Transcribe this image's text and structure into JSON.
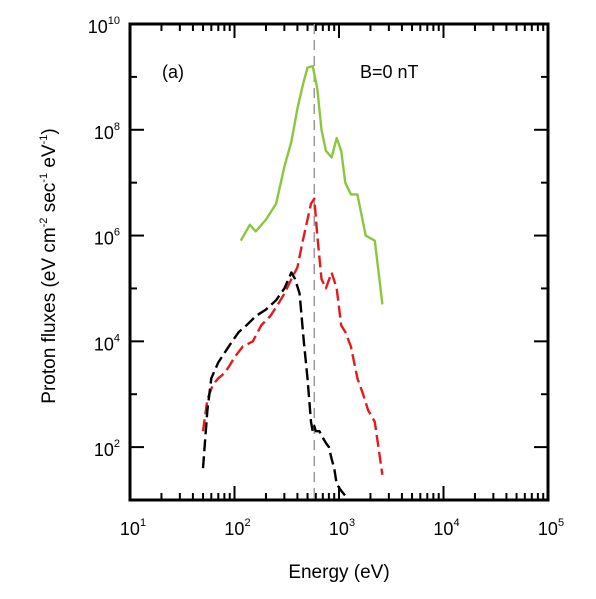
{
  "chart_data": {
    "type": "line",
    "xlabel": "Energy (eV)",
    "ylabel": "Proton fluxes (eV cm",
    "ylabel_parts": [
      {
        "text": "Proton fluxes (eV cm",
        "sup": false
      },
      {
        "text": "-2",
        "sup": true
      },
      {
        "text": " sec",
        "sup": false
      },
      {
        "text": "-1",
        "sup": true
      },
      {
        "text": " eV",
        "sup": false
      },
      {
        "text": "-1",
        "sup": true
      },
      {
        "text": ")",
        "sup": false
      }
    ],
    "x_scale": "log",
    "y_scale": "log",
    "xlim": [
      10,
      100000
    ],
    "ylim": [
      10,
      10000000000
    ],
    "x_ticks": [
      {
        "base": "10",
        "exp": "1",
        "value": 10
      },
      {
        "base": "10",
        "exp": "2",
        "value": 100
      },
      {
        "base": "10",
        "exp": "3",
        "value": 1000
      },
      {
        "base": "10",
        "exp": "4",
        "value": 10000
      },
      {
        "base": "10",
        "exp": "5",
        "value": 100000
      }
    ],
    "y_ticks": [
      {
        "base": "10",
        "exp": "2",
        "value": 100
      },
      {
        "base": "10",
        "exp": "4",
        "value": 10000
      },
      {
        "base": "10",
        "exp": "6",
        "value": 1000000
      },
      {
        "base": "10",
        "exp": "8",
        "value": 100000000
      },
      {
        "base": "10",
        "exp": "10",
        "value": 10000000000
      }
    ],
    "annotations": {
      "panel_label": "(a)",
      "field_label": "B=0 nT"
    },
    "reference_line": {
      "x": 580,
      "color": "#999999",
      "style": "dashed"
    },
    "grid": false,
    "series": [
      {
        "color": "#8cc63f",
        "style": "solid",
        "x": [
          115,
          140,
          160,
          200,
          250,
          300,
          350,
          400,
          450,
          500,
          560,
          620,
          680,
          750,
          850,
          950,
          1050,
          1150,
          1300,
          1500,
          1800,
          2200,
          2600
        ],
        "y": [
          800000,
          1600000,
          1200000,
          2000000,
          4000000,
          20000000,
          60000000,
          250000000,
          700000000,
          1500000000,
          1600000000,
          600000000,
          100000000,
          40000000,
          30000000,
          70000000,
          40000000,
          10000000,
          6000000,
          6000000,
          1000000,
          800000,
          50000
        ]
      },
      {
        "color": "#e41a1c",
        "style": "dashed",
        "x": [
          50,
          55,
          62,
          70,
          80,
          90,
          100,
          120,
          150,
          180,
          220,
          260,
          300,
          350,
          400,
          450,
          500,
          540,
          580,
          620,
          680,
          750,
          850,
          950,
          1050,
          1150,
          1300,
          1500,
          1700,
          1900,
          2200,
          2600
        ],
        "y": [
          200,
          800,
          1500,
          2000,
          2500,
          3500,
          5000,
          8000,
          10000,
          20000,
          30000,
          50000,
          80000,
          150000,
          250000,
          800000,
          2000000,
          4000000,
          5000000,
          1000000,
          150000,
          100000,
          200000,
          100000,
          20000,
          15000,
          8000,
          2000,
          1000,
          500,
          300,
          30
        ]
      },
      {
        "color": "#000000",
        "style": "dashed",
        "x": [
          50,
          55,
          60,
          70,
          80,
          95,
          110,
          130,
          160,
          200,
          250,
          300,
          350,
          380,
          420,
          460,
          500,
          540,
          560,
          580,
          600,
          650,
          700,
          750,
          800,
          850,
          900,
          950,
          1050,
          1150
        ],
        "y": [
          40,
          500,
          2000,
          4000,
          6000,
          10000,
          15000,
          20000,
          30000,
          40000,
          60000,
          100000,
          200000,
          150000,
          80000,
          10000,
          2000,
          300,
          200,
          250,
          200,
          200,
          150,
          120,
          100,
          60,
          40,
          20,
          15,
          12
        ]
      }
    ]
  }
}
